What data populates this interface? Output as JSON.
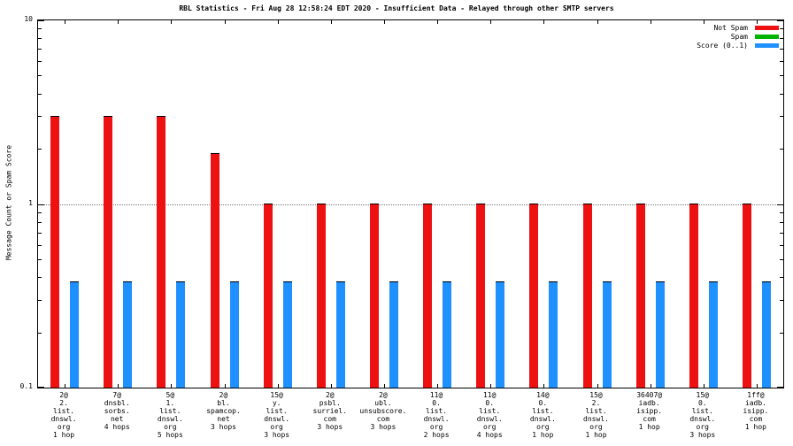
{
  "title": "RBL Statistics - Fri Aug 28 12:58:24 EDT 2020 - Insufficient Data - Relayed through other SMTP servers",
  "ylabel": "Message Count or Spam Score",
  "legend": {
    "position": "top-right",
    "entries": [
      {
        "label": "Not Spam",
        "color": "#ee1111"
      },
      {
        "label": "Spam",
        "color": "#00b400"
      },
      {
        "label": "Score (0..1)",
        "color": "#1e90ff"
      }
    ]
  },
  "chart_data": {
    "type": "bar",
    "yscale": "log",
    "ylim": [
      0.1,
      10
    ],
    "ytick_labels": [
      "10",
      "1",
      "0.1"
    ],
    "ytick_values": [
      10,
      1,
      0.1
    ],
    "grid_y": [
      1
    ],
    "grid_on": true,
    "legend_position": "top-right",
    "categories": [
      {
        "lines": [
          "2@",
          "2.",
          "list.",
          "dnswl.",
          "org",
          "1 hop"
        ]
      },
      {
        "lines": [
          "7@",
          "dnsbl.",
          "sorbs.",
          "net",
          "4 hops"
        ]
      },
      {
        "lines": [
          "5@",
          "1.",
          "list.",
          "dnswl.",
          "org",
          "5 hops"
        ]
      },
      {
        "lines": [
          "2@",
          "bl.",
          "spamcop.",
          "net",
          "3 hops"
        ]
      },
      {
        "lines": [
          "15@",
          "y.",
          "list.",
          "dnswl.",
          "org",
          "3 hops"
        ]
      },
      {
        "lines": [
          "2@",
          "psbl.",
          "surriel.",
          "com",
          "3 hops"
        ]
      },
      {
        "lines": [
          "2@",
          "ubl.",
          "unsubscore.",
          "com",
          "3 hops"
        ]
      },
      {
        "lines": [
          "11@",
          "0.",
          "list.",
          "dnswl.",
          "org",
          "2 hops"
        ]
      },
      {
        "lines": [
          "11@",
          "0.",
          "list.",
          "dnswl.",
          "org",
          "4 hops"
        ]
      },
      {
        "lines": [
          "14@",
          "0.",
          "list.",
          "dnswl.",
          "org",
          "1 hop"
        ]
      },
      {
        "lines": [
          "15@",
          "2.",
          "list.",
          "dnswl.",
          "org",
          "1 hop"
        ]
      },
      {
        "lines": [
          "36407@",
          "iadb.",
          "isipp.",
          "com",
          "1 hop"
        ]
      },
      {
        "lines": [
          "15@",
          "0.",
          "list.",
          "dnswl.",
          "org",
          "3 hops"
        ]
      },
      {
        "lines": [
          "1ff@",
          "iadb.",
          "isipp.",
          "com",
          "1 hop"
        ]
      }
    ],
    "series": [
      {
        "name": "Not Spam",
        "color": "#ee1111",
        "values": [
          3,
          3,
          3,
          1.9,
          1,
          1,
          1,
          1,
          1,
          1,
          1,
          1,
          1,
          1
        ]
      },
      {
        "name": "Spam",
        "color": "#00b400",
        "values": [
          0,
          0,
          0,
          0,
          0,
          0,
          0,
          0,
          0,
          0,
          0,
          0,
          0,
          0
        ]
      },
      {
        "name": "Score (0..1)",
        "color": "#1e90ff",
        "values": [
          0.38,
          0.38,
          0.38,
          0.38,
          0.38,
          0.38,
          0.38,
          0.38,
          0.38,
          0.38,
          0.38,
          0.38,
          0.38,
          0.38
        ]
      }
    ]
  }
}
